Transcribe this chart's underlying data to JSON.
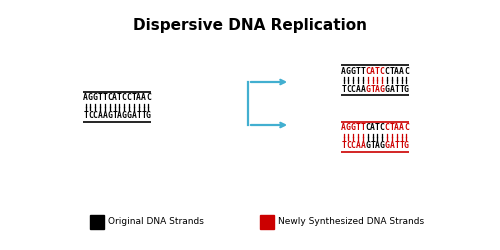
{
  "title": "Dispersive DNA Replication",
  "title_fontsize": 11,
  "title_fontweight": "bold",
  "bg_color": "#ffffff",
  "original_top": "AGGTTCATCCTAAC",
  "original_bottom": "TCCAAGTAGGATTG",
  "top_dna_1_parts": [
    "AGGTT",
    "CATC",
    "CTAAC"
  ],
  "top_dna_1_colors": [
    "#000000",
    "#cc0000",
    "#000000"
  ],
  "bottom_dna_1_parts": [
    "TCCAA",
    "GTAG",
    "GATTG"
  ],
  "bottom_dna_1_colors": [
    "#000000",
    "#cc0000",
    "#000000"
  ],
  "top_dna_2_parts": [
    "AGGTT",
    "CATC",
    "CTAAC"
  ],
  "top_dna_2_colors": [
    "#cc0000",
    "#000000",
    "#cc0000"
  ],
  "bottom_dna_2_parts": [
    "TCCAA",
    "GTAG",
    "GATTG"
  ],
  "bottom_dna_2_colors": [
    "#cc0000",
    "#000000",
    "#cc0000"
  ],
  "legend_black": "Original DNA Strands",
  "legend_red": "Newly Synthesized DNA Strands",
  "dna_fontsize": 5.8,
  "arrow_color": "#42afd0",
  "tick_lw": 0.9,
  "strand_lw": 1.2
}
